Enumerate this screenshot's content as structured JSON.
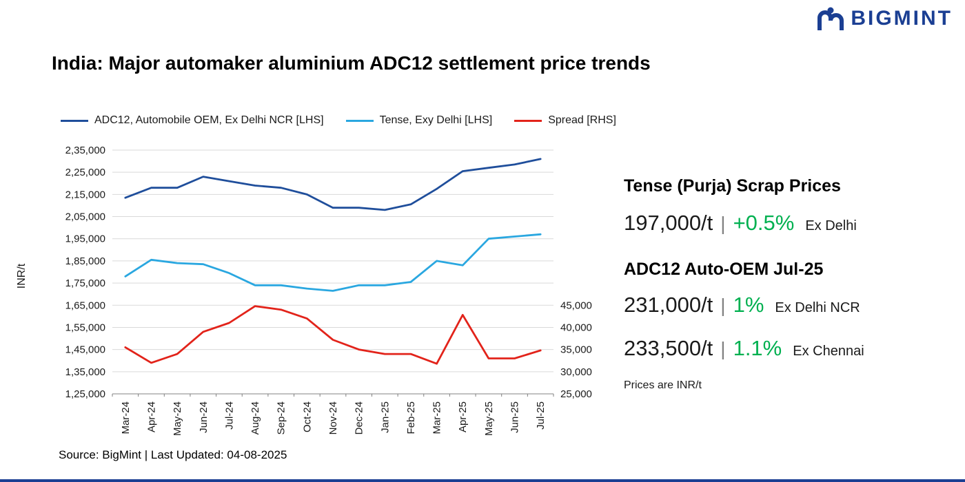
{
  "colors": {
    "navy": "#1b3f93",
    "adc12": "#1f4e9b",
    "tense": "#2aa7e0",
    "spread": "#e2231a",
    "green": "#00b050",
    "grid": "#d9d9d9",
    "axis": "#808080"
  },
  "logo": {
    "brand": "BIGMINT"
  },
  "header": {
    "title": "India: Major automaker aluminium ADC12 settlement price trends"
  },
  "chart_data": {
    "type": "line",
    "title": "India: Major automaker aluminium ADC12 settlement price trends",
    "xlabel": "",
    "ylabel": "INR/t",
    "grid": true,
    "legend_position": "top",
    "categories": [
      "Mar-24",
      "Apr-24",
      "May-24",
      "Jun-24",
      "Jul-24",
      "Aug-24",
      "Sep-24",
      "Oct-24",
      "Nov-24",
      "Dec-24",
      "Jan-25",
      "Feb-25",
      "Mar-25",
      "Apr-25",
      "May-25",
      "Jun-25",
      "Jul-25"
    ],
    "series": [
      {
        "name": "ADC12, Automobile OEM, Ex Delhi NCR [LHS]",
        "axis": "left",
        "color": "#1f4e9b",
        "values": [
          213500,
          218000,
          218000,
          223000,
          221000,
          219000,
          218000,
          215000,
          209000,
          209000,
          208000,
          210500,
          217500,
          225500,
          227000,
          228500,
          231000
        ]
      },
      {
        "name": "Tense, Exy Delhi [LHS]",
        "axis": "left",
        "color": "#2aa7e0",
        "values": [
          178000,
          185500,
          184000,
          183500,
          179500,
          174000,
          174000,
          172500,
          171500,
          174000,
          174000,
          175500,
          185000,
          183000,
          195000,
          196000,
          197000
        ]
      },
      {
        "name": "Spread [RHS]",
        "axis": "right",
        "color": "#e2231a",
        "values": [
          35500,
          32000,
          34000,
          39000,
          41000,
          44800,
          44000,
          42000,
          37200,
          35000,
          34000,
          34000,
          31800,
          42800,
          33000,
          33000,
          34800
        ]
      }
    ],
    "left_axis": {
      "min": 125000,
      "max": 235000,
      "step": 10000,
      "tick_labels": [
        "2,35,000",
        "2,25,000",
        "2,15,000",
        "2,05,000",
        "1,95,000",
        "1,85,000",
        "1,75,000",
        "1,65,000",
        "1,55,000",
        "1,45,000",
        "1,35,000",
        "1,25,000"
      ]
    },
    "right_axis": {
      "min": 25000,
      "max": 80000,
      "ticks": [
        {
          "label": "45,000",
          "value": 45000
        },
        {
          "label": "40,000",
          "value": 40000
        },
        {
          "label": "35,000",
          "value": 35000
        },
        {
          "label": "30,000",
          "value": 30000
        },
        {
          "label": "25,000",
          "value": 25000
        }
      ]
    }
  },
  "side_panel": {
    "separator": "|",
    "sections": [
      {
        "heading": "Tense (Purja) Scrap Prices",
        "rows": [
          {
            "value": "197,000/t",
            "change": "+0.5%",
            "location": "Ex Delhi"
          }
        ]
      },
      {
        "heading": "ADC12 Auto-OEM Jul-25",
        "rows": [
          {
            "value": "231,000/t",
            "change": "1%",
            "location": "Ex Delhi NCR"
          },
          {
            "value": "233,500/t",
            "change": "1.1%",
            "location": "Ex Chennai"
          }
        ]
      }
    ],
    "note": "Prices are INR/t"
  },
  "footer": {
    "source": "Source: BigMint | Last Updated: 04-08-2025"
  }
}
